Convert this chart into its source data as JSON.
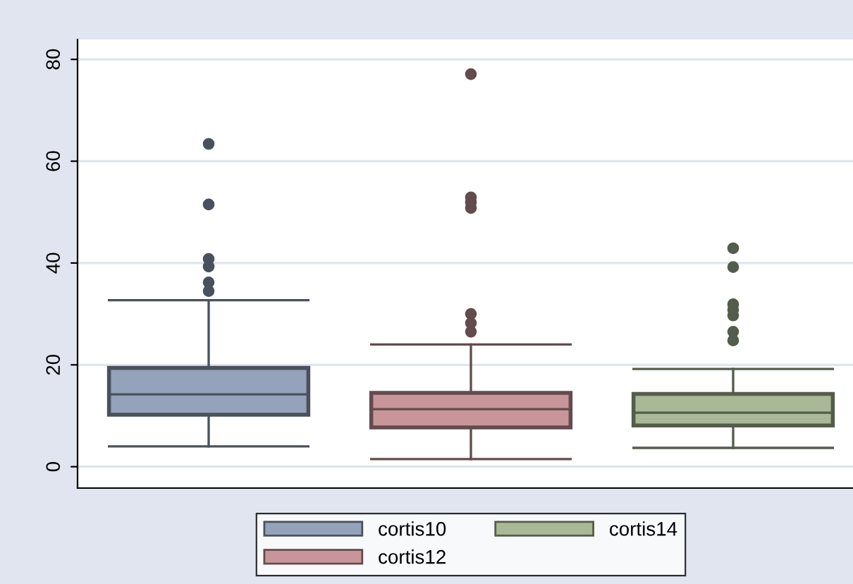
{
  "chart_data": {
    "type": "box",
    "categories": [
      null
    ],
    "ylim": [
      -4.2,
      83.9
    ],
    "yticks": [
      0,
      20,
      40,
      60,
      80
    ],
    "grid": "y",
    "legend": "bottom",
    "series": [
      {
        "name": "cortis10",
        "color": "#94a3bb",
        "boxes": [
          {
            "low": 4.0,
            "q1": 10.2,
            "median": 14.2,
            "q3": 19.4,
            "high": 32.7,
            "outliers": [
              34.5,
              36.2,
              39.3,
              40.8,
              51.5,
              63.4
            ]
          }
        ]
      },
      {
        "name": "cortis12",
        "color": "#c8969a",
        "boxes": [
          {
            "low": 1.5,
            "q1": 7.7,
            "median": 11.3,
            "q3": 14.5,
            "high": 24.0,
            "outliers": [
              26.5,
              28.2,
              30.0,
              50.8,
              51.9,
              52.9,
              77.1
            ]
          }
        ]
      },
      {
        "name": "cortis14",
        "color": "#a9b896",
        "boxes": [
          {
            "low": 3.7,
            "q1": 8.1,
            "median": 10.6,
            "q3": 14.3,
            "high": 19.2,
            "outliers": [
              24.8,
              26.5,
              29.7,
              30.8,
              31.9,
              39.2,
              42.9
            ]
          }
        ]
      }
    ]
  }
}
